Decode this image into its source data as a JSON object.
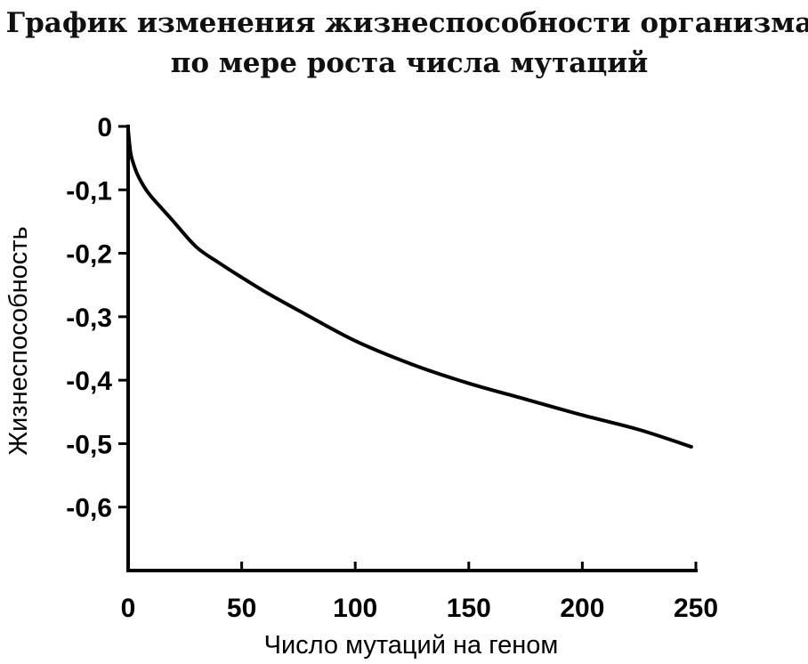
{
  "chart_data": {
    "type": "line",
    "title": [
      "График изменения жизнеспособности организма",
      "по мере роста числа мутаций"
    ],
    "xlabel": "Число мутаций на геном",
    "ylabel": "Жизнеспособность",
    "xlim": [
      0,
      250
    ],
    "ylim": [
      -0.7,
      0
    ],
    "x_ticks": [
      0,
      50,
      100,
      150,
      200,
      250
    ],
    "x_tick_labels": [
      "0",
      "50",
      "100",
      "150",
      "200",
      "250"
    ],
    "y_ticks": [
      0,
      -0.1,
      -0.2,
      -0.3,
      -0.4,
      -0.5,
      -0.6
    ],
    "y_tick_labels": [
      "0",
      "-0,1",
      "-0,2",
      "-0,3",
      "-0,4",
      "-0,5",
      "-0,6"
    ],
    "grid": false,
    "series": [
      {
        "color": "#000000",
        "x": [
          0,
          1,
          2,
          4,
          7,
          10,
          15,
          20,
          30,
          40,
          50,
          60,
          75,
          100,
          125,
          150,
          175,
          200,
          225,
          248
        ],
        "y": [
          -0.005,
          -0.04,
          -0.055,
          -0.075,
          -0.095,
          -0.11,
          -0.13,
          -0.15,
          -0.19,
          -0.215,
          -0.238,
          -0.26,
          -0.29,
          -0.338,
          -0.375,
          -0.405,
          -0.43,
          -0.455,
          -0.478,
          -0.505
        ]
      }
    ]
  }
}
